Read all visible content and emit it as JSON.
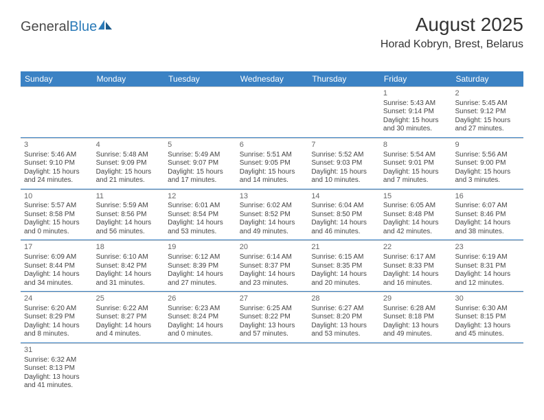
{
  "logo": {
    "text1": "General",
    "text2": "Blue"
  },
  "header": {
    "month": "August 2025",
    "location": "Horad Kobryn, Brest, Belarus"
  },
  "weekdays": [
    "Sunday",
    "Monday",
    "Tuesday",
    "Wednesday",
    "Thursday",
    "Friday",
    "Saturday"
  ],
  "colors": {
    "header_bg": "#3b82c4",
    "header_text": "#ffffff",
    "row_divider": "#3b82c4",
    "cell_divider": "#cccccc",
    "text": "#444444",
    "daynum": "#666666"
  },
  "weeks": [
    [
      {
        "empty": true
      },
      {
        "empty": true
      },
      {
        "empty": true
      },
      {
        "empty": true
      },
      {
        "empty": true
      },
      {
        "day": "1",
        "sunrise": "Sunrise: 5:43 AM",
        "sunset": "Sunset: 9:14 PM",
        "daylight": "Daylight: 15 hours and 30 minutes."
      },
      {
        "day": "2",
        "sunrise": "Sunrise: 5:45 AM",
        "sunset": "Sunset: 9:12 PM",
        "daylight": "Daylight: 15 hours and 27 minutes."
      }
    ],
    [
      {
        "day": "3",
        "sunrise": "Sunrise: 5:46 AM",
        "sunset": "Sunset: 9:10 PM",
        "daylight": "Daylight: 15 hours and 24 minutes."
      },
      {
        "day": "4",
        "sunrise": "Sunrise: 5:48 AM",
        "sunset": "Sunset: 9:09 PM",
        "daylight": "Daylight: 15 hours and 21 minutes."
      },
      {
        "day": "5",
        "sunrise": "Sunrise: 5:49 AM",
        "sunset": "Sunset: 9:07 PM",
        "daylight": "Daylight: 15 hours and 17 minutes."
      },
      {
        "day": "6",
        "sunrise": "Sunrise: 5:51 AM",
        "sunset": "Sunset: 9:05 PM",
        "daylight": "Daylight: 15 hours and 14 minutes."
      },
      {
        "day": "7",
        "sunrise": "Sunrise: 5:52 AM",
        "sunset": "Sunset: 9:03 PM",
        "daylight": "Daylight: 15 hours and 10 minutes."
      },
      {
        "day": "8",
        "sunrise": "Sunrise: 5:54 AM",
        "sunset": "Sunset: 9:01 PM",
        "daylight": "Daylight: 15 hours and 7 minutes."
      },
      {
        "day": "9",
        "sunrise": "Sunrise: 5:56 AM",
        "sunset": "Sunset: 9:00 PM",
        "daylight": "Daylight: 15 hours and 3 minutes."
      }
    ],
    [
      {
        "day": "10",
        "sunrise": "Sunrise: 5:57 AM",
        "sunset": "Sunset: 8:58 PM",
        "daylight": "Daylight: 15 hours and 0 minutes."
      },
      {
        "day": "11",
        "sunrise": "Sunrise: 5:59 AM",
        "sunset": "Sunset: 8:56 PM",
        "daylight": "Daylight: 14 hours and 56 minutes."
      },
      {
        "day": "12",
        "sunrise": "Sunrise: 6:01 AM",
        "sunset": "Sunset: 8:54 PM",
        "daylight": "Daylight: 14 hours and 53 minutes."
      },
      {
        "day": "13",
        "sunrise": "Sunrise: 6:02 AM",
        "sunset": "Sunset: 8:52 PM",
        "daylight": "Daylight: 14 hours and 49 minutes."
      },
      {
        "day": "14",
        "sunrise": "Sunrise: 6:04 AM",
        "sunset": "Sunset: 8:50 PM",
        "daylight": "Daylight: 14 hours and 46 minutes."
      },
      {
        "day": "15",
        "sunrise": "Sunrise: 6:05 AM",
        "sunset": "Sunset: 8:48 PM",
        "daylight": "Daylight: 14 hours and 42 minutes."
      },
      {
        "day": "16",
        "sunrise": "Sunrise: 6:07 AM",
        "sunset": "Sunset: 8:46 PM",
        "daylight": "Daylight: 14 hours and 38 minutes."
      }
    ],
    [
      {
        "day": "17",
        "sunrise": "Sunrise: 6:09 AM",
        "sunset": "Sunset: 8:44 PM",
        "daylight": "Daylight: 14 hours and 34 minutes."
      },
      {
        "day": "18",
        "sunrise": "Sunrise: 6:10 AM",
        "sunset": "Sunset: 8:42 PM",
        "daylight": "Daylight: 14 hours and 31 minutes."
      },
      {
        "day": "19",
        "sunrise": "Sunrise: 6:12 AM",
        "sunset": "Sunset: 8:39 PM",
        "daylight": "Daylight: 14 hours and 27 minutes."
      },
      {
        "day": "20",
        "sunrise": "Sunrise: 6:14 AM",
        "sunset": "Sunset: 8:37 PM",
        "daylight": "Daylight: 14 hours and 23 minutes."
      },
      {
        "day": "21",
        "sunrise": "Sunrise: 6:15 AM",
        "sunset": "Sunset: 8:35 PM",
        "daylight": "Daylight: 14 hours and 20 minutes."
      },
      {
        "day": "22",
        "sunrise": "Sunrise: 6:17 AM",
        "sunset": "Sunset: 8:33 PM",
        "daylight": "Daylight: 14 hours and 16 minutes."
      },
      {
        "day": "23",
        "sunrise": "Sunrise: 6:19 AM",
        "sunset": "Sunset: 8:31 PM",
        "daylight": "Daylight: 14 hours and 12 minutes."
      }
    ],
    [
      {
        "day": "24",
        "sunrise": "Sunrise: 6:20 AM",
        "sunset": "Sunset: 8:29 PM",
        "daylight": "Daylight: 14 hours and 8 minutes."
      },
      {
        "day": "25",
        "sunrise": "Sunrise: 6:22 AM",
        "sunset": "Sunset: 8:27 PM",
        "daylight": "Daylight: 14 hours and 4 minutes."
      },
      {
        "day": "26",
        "sunrise": "Sunrise: 6:23 AM",
        "sunset": "Sunset: 8:24 PM",
        "daylight": "Daylight: 14 hours and 0 minutes."
      },
      {
        "day": "27",
        "sunrise": "Sunrise: 6:25 AM",
        "sunset": "Sunset: 8:22 PM",
        "daylight": "Daylight: 13 hours and 57 minutes."
      },
      {
        "day": "28",
        "sunrise": "Sunrise: 6:27 AM",
        "sunset": "Sunset: 8:20 PM",
        "daylight": "Daylight: 13 hours and 53 minutes."
      },
      {
        "day": "29",
        "sunrise": "Sunrise: 6:28 AM",
        "sunset": "Sunset: 8:18 PM",
        "daylight": "Daylight: 13 hours and 49 minutes."
      },
      {
        "day": "30",
        "sunrise": "Sunrise: 6:30 AM",
        "sunset": "Sunset: 8:15 PM",
        "daylight": "Daylight: 13 hours and 45 minutes."
      }
    ],
    [
      {
        "day": "31",
        "sunrise": "Sunrise: 6:32 AM",
        "sunset": "Sunset: 8:13 PM",
        "daylight": "Daylight: 13 hours and 41 minutes."
      },
      {
        "empty": true
      },
      {
        "empty": true
      },
      {
        "empty": true
      },
      {
        "empty": true
      },
      {
        "empty": true
      },
      {
        "empty": true
      }
    ]
  ]
}
